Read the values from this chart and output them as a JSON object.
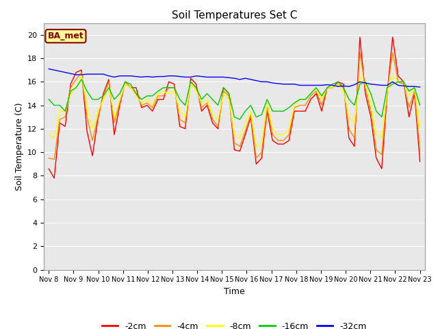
{
  "title": "Soil Temperatures Set C",
  "xlabel": "Time",
  "ylabel": "Soil Temperature (C)",
  "ylim": [
    0,
    21
  ],
  "yticks": [
    0,
    2,
    4,
    6,
    8,
    10,
    12,
    14,
    16,
    18,
    20
  ],
  "x_labels": [
    "Nov 8",
    "Nov 9",
    "Nov 10",
    "Nov 11",
    "Nov 12",
    "Nov 13",
    "Nov 14",
    "Nov 15",
    "Nov 16",
    "Nov 17",
    "Nov 18",
    "Nov 19",
    "Nov 20",
    "Nov 21",
    "Nov 22",
    "Nov 23"
  ],
  "annotation": "BA_met",
  "fig_bg": "#ffffff",
  "plot_bg": "#e8e8e8",
  "series": [
    {
      "label": "-2cm",
      "color": "#ff0000",
      "data": [
        8.6,
        7.8,
        12.5,
        12.2,
        15.8,
        16.8,
        17.0,
        11.8,
        9.7,
        12.8,
        15.0,
        16.2,
        11.5,
        14.0,
        16.0,
        15.5,
        15.5,
        13.8,
        14.0,
        13.5,
        14.5,
        14.5,
        16.0,
        15.8,
        12.2,
        12.0,
        16.3,
        15.8,
        13.5,
        14.0,
        12.5,
        12.0,
        15.5,
        15.0,
        10.2,
        10.1,
        11.5,
        13.0,
        9.0,
        9.5,
        13.5,
        11.0,
        10.7,
        10.7,
        11.0,
        13.5,
        13.5,
        13.5,
        14.5,
        15.0,
        13.5,
        15.5,
        15.5,
        16.0,
        15.8,
        11.2,
        10.5,
        19.8,
        15.0,
        13.0,
        9.5,
        8.6,
        15.0,
        19.8,
        16.5,
        16.0,
        13.0,
        15.0,
        9.2
      ]
    },
    {
      "label": "-4cm",
      "color": "#ff8c00",
      "data": [
        9.5,
        9.4,
        12.8,
        13.0,
        15.5,
        16.2,
        16.8,
        13.0,
        11.0,
        13.0,
        14.8,
        16.0,
        12.5,
        14.2,
        16.0,
        15.5,
        15.0,
        14.0,
        14.2,
        13.8,
        14.8,
        14.8,
        15.5,
        15.5,
        12.8,
        12.5,
        16.0,
        15.5,
        13.8,
        14.2,
        12.8,
        12.2,
        15.2,
        14.8,
        10.8,
        10.5,
        11.8,
        13.2,
        9.5,
        10.0,
        13.8,
        11.5,
        11.0,
        11.0,
        11.5,
        13.8,
        14.0,
        14.0,
        14.8,
        15.2,
        14.0,
        15.5,
        15.5,
        15.8,
        15.5,
        12.0,
        11.2,
        18.5,
        15.5,
        13.5,
        10.2,
        9.8,
        15.2,
        18.5,
        16.0,
        15.8,
        13.8,
        15.2,
        10.2
      ]
    },
    {
      "label": "-8cm",
      "color": "#ffff00",
      "data": [
        11.5,
        11.2,
        13.5,
        13.5,
        15.0,
        15.5,
        16.5,
        14.0,
        12.0,
        13.5,
        14.5,
        15.5,
        13.0,
        14.5,
        15.8,
        15.5,
        14.8,
        14.2,
        14.5,
        14.0,
        15.0,
        15.2,
        15.0,
        15.2,
        13.5,
        13.0,
        15.8,
        15.2,
        14.2,
        14.5,
        13.2,
        12.8,
        15.0,
        14.5,
        11.5,
        11.2,
        12.5,
        13.5,
        10.5,
        10.8,
        14.2,
        12.0,
        11.5,
        11.5,
        12.0,
        14.0,
        14.5,
        14.5,
        15.0,
        15.5,
        14.5,
        15.5,
        15.5,
        15.8,
        15.2,
        13.0,
        12.5,
        16.5,
        15.8,
        14.2,
        11.5,
        11.2,
        15.2,
        16.5,
        16.0,
        16.0,
        14.8,
        15.5,
        12.0
      ]
    },
    {
      "label": "-16cm",
      "color": "#00cc00",
      "data": [
        14.5,
        14.0,
        14.0,
        13.5,
        15.2,
        15.5,
        16.2,
        15.2,
        14.5,
        14.5,
        14.8,
        15.5,
        14.5,
        15.0,
        16.0,
        15.8,
        15.0,
        14.5,
        14.8,
        14.8,
        15.2,
        15.5,
        15.5,
        15.5,
        14.5,
        14.0,
        16.0,
        15.5,
        14.5,
        15.0,
        14.5,
        14.0,
        15.5,
        15.0,
        13.0,
        12.8,
        13.5,
        14.0,
        13.0,
        13.2,
        14.5,
        13.5,
        13.5,
        13.5,
        13.8,
        14.2,
        14.5,
        14.5,
        15.0,
        15.5,
        14.8,
        15.5,
        15.8,
        16.0,
        15.5,
        14.5,
        14.0,
        15.8,
        16.0,
        15.0,
        13.5,
        13.0,
        15.5,
        15.8,
        16.0,
        16.0,
        15.2,
        15.5,
        14.0
      ]
    },
    {
      "label": "-32cm",
      "color": "#0000ff",
      "data": [
        17.1,
        17.0,
        16.9,
        16.8,
        16.7,
        16.6,
        16.6,
        16.65,
        16.65,
        16.65,
        16.65,
        16.5,
        16.4,
        16.5,
        16.5,
        16.5,
        16.45,
        16.4,
        16.45,
        16.4,
        16.45,
        16.45,
        16.5,
        16.5,
        16.45,
        16.4,
        16.4,
        16.5,
        16.45,
        16.4,
        16.4,
        16.4,
        16.4,
        16.35,
        16.3,
        16.2,
        16.3,
        16.2,
        16.1,
        16.0,
        16.0,
        15.9,
        15.85,
        15.8,
        15.8,
        15.8,
        15.7,
        15.7,
        15.7,
        15.7,
        15.7,
        15.75,
        15.7,
        15.6,
        15.65,
        15.6,
        15.75,
        16.0,
        15.9,
        15.8,
        15.75,
        15.7,
        15.7,
        16.0,
        15.7,
        15.65,
        15.6,
        15.6,
        15.55
      ]
    }
  ],
  "n_points": 69,
  "grid_color": "#ffffff",
  "annotation_box_color": "#ffff99",
  "annotation_text_color": "#8b0000",
  "annotation_border_color": "#8b0000"
}
